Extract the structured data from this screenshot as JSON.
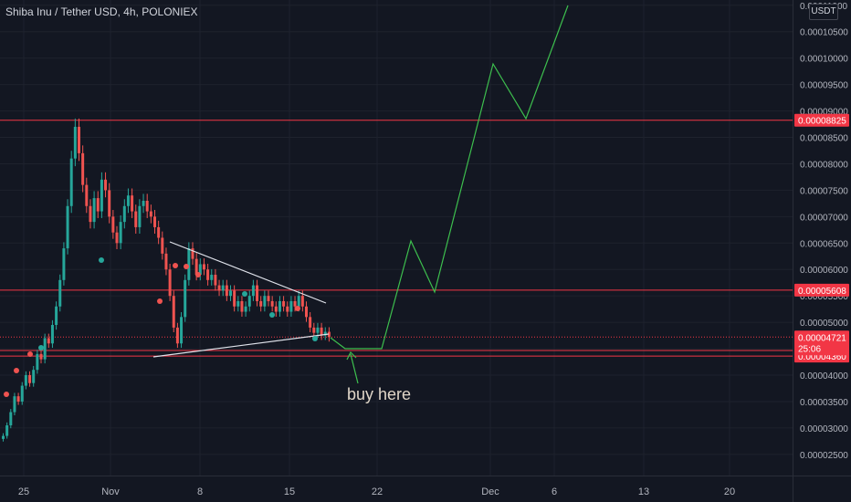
{
  "chart_data": {
    "type": "candlestick",
    "title": "Shiba Inu / Tether USD, 4h, POLONIEX",
    "currency_badge": "USDT",
    "x_ticks": [
      "25",
      "Nov",
      "8",
      "15",
      "22",
      "Dec",
      "6",
      "13",
      "20"
    ],
    "y_ticks": [
      "0.00011000",
      "0.00010500",
      "0.00010000",
      "0.00009500",
      "0.00009000",
      "0.00008500",
      "0.00008000",
      "0.00007500",
      "0.00007000",
      "0.00006500",
      "0.00006000",
      "0.00005500",
      "0.00005000",
      "0.00004500",
      "0.00004000",
      "0.00003500",
      "0.00003000",
      "0.00002500"
    ],
    "ylim": [
      2.1e-05,
      0.000111
    ],
    "horizontal_levels": [
      {
        "value": 8.825e-05,
        "label": "0.00008825",
        "color": "#f23645"
      },
      {
        "value": 5.608e-05,
        "label": "0.00005608",
        "color": "#f23645"
      },
      {
        "value": 4.466e-05,
        "label": "0.00004466",
        "color": "#f23645"
      },
      {
        "value": 4.36e-05,
        "label": "0.00004360",
        "color": "#f23645"
      }
    ],
    "last_price": {
      "value": 4.721e-05,
      "label": "0.00004721",
      "countdown": "25:06",
      "color": "#f23645"
    },
    "annotation": "buy here",
    "candles_close": [
      2.85e-05,
      3.05e-05,
      3.3e-05,
      3.6e-05,
      3.5e-05,
      3.8e-05,
      4e-05,
      3.85e-05,
      4.1e-05,
      4.4e-05,
      4.3e-05,
      4.7e-05,
      4.6e-05,
      4.95e-05,
      5.3e-05,
      5.8e-05,
      6.4e-05,
      7.2e-05,
      8.1e-05,
      8.7e-05,
      8.2e-05,
      7.6e-05,
      7.2e-05,
      6.9e-05,
      7.35e-05,
      7.1e-05,
      7.7e-05,
      7.5e-05,
      7e-05,
      6.7e-05,
      6.5e-05,
      6.9e-05,
      7.2e-05,
      7.4e-05,
      7.1e-05,
      6.8e-05,
      7.2e-05,
      7.3e-05,
      7.1e-05,
      7e-05,
      6.8e-05,
      6.6e-05,
      6.3e-05,
      6e-05,
      5.5e-05,
      4.9e-05,
      4.6e-05,
      5.1e-05,
      5.8e-05,
      6.4e-05,
      6.2e-05,
      5.9e-05,
      6.1e-05,
      6e-05,
      5.8e-05,
      5.9e-05,
      5.7e-05,
      5.6e-05,
      5.7e-05,
      5.5e-05,
      5.6e-05,
      5.3e-05,
      5.4e-05,
      5.2e-05,
      5.3e-05,
      5.5e-05,
      5.7e-05,
      5.4e-05,
      5.3e-05,
      5.5e-05,
      5.4e-05,
      5.3e-05,
      5.2e-05,
      5.4e-05,
      5.3e-05,
      5.2e-05,
      5.4e-05,
      5.3e-05,
      5.5e-05,
      5.3e-05,
      5.1e-05,
      4.9e-05,
      4.8e-05,
      4.9e-05,
      4.75e-05,
      4.82e-05,
      4.72e-05
    ]
  }
}
